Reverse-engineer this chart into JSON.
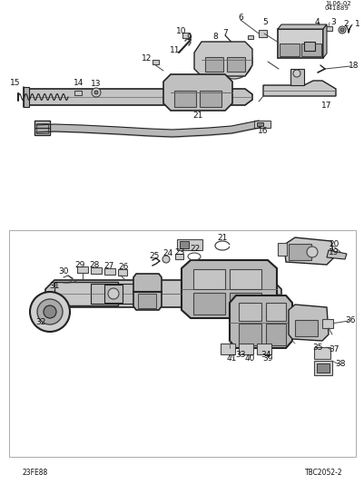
{
  "bg": "#ffffff",
  "fig_w": 4.02,
  "fig_h": 5.34,
  "dpi": 100,
  "label_bl": "23FE88",
  "label_br": "TBC2052-2",
  "label_tr1": "1L06-02",
  "label_tr2": "041889"
}
